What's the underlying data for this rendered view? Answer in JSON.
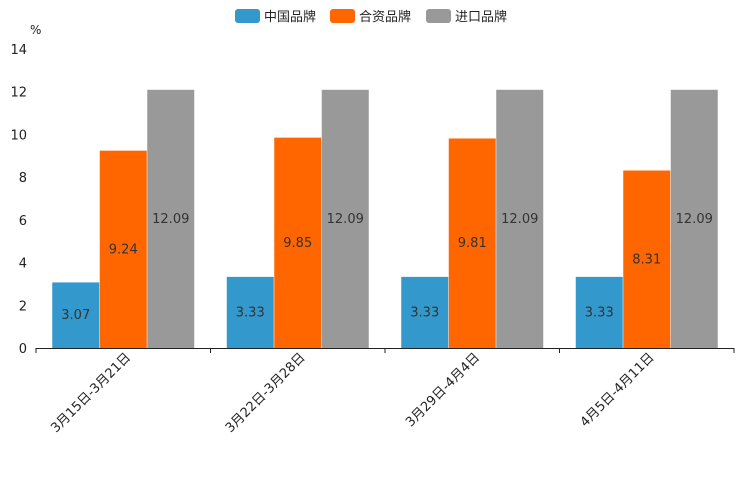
{
  "chart_data": {
    "type": "bar",
    "unit": "%",
    "categories": [
      "3月15日-3月21日",
      "3月22日-3月28日",
      "3月29日-4月4日",
      "4月5日-4月11日"
    ],
    "series": [
      {
        "name": "中国品牌",
        "color": "#3399cc",
        "values": [
          3.07,
          3.33,
          3.33,
          3.33
        ]
      },
      {
        "name": "合资品牌",
        "color": "#ff6600",
        "values": [
          9.24,
          9.85,
          9.81,
          8.31
        ]
      },
      {
        "name": "进口品牌",
        "color": "#999999",
        "values": [
          12.09,
          12.09,
          12.09,
          12.09
        ]
      }
    ],
    "yticks": [
      "0",
      "2",
      "4",
      "6",
      "8",
      "10",
      "12",
      "14"
    ],
    "ylim": [
      0,
      14
    ],
    "legend": "top-center",
    "grid": false
  }
}
